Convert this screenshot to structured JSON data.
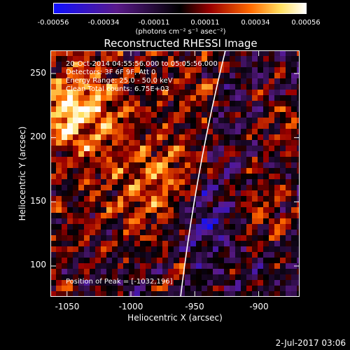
{
  "colorbar": {
    "tick_labels": [
      "-0.00056",
      "-0.00034",
      "-0.00011",
      "0.00011",
      "0.00034",
      "0.00056"
    ],
    "unit_label": "(photons cm⁻² s⁻¹ asec⁻²)",
    "colormap": [
      "#1010ff",
      "#5a1a8a",
      "#000000",
      "#9a0000",
      "#ff6a00",
      "#ffe060",
      "#ffffff"
    ]
  },
  "image": {
    "title": "Reconstructed RHESSI Image",
    "info_lines": [
      "20-Oct-2014 04:55:56.000 to 05:05:56.000",
      "Detectors: 3F 6F 9F, Att 0",
      "Energy Range: 25.0 - 50.0 keV",
      "Clean    Total counts: 6.75E+03"
    ],
    "peak_label": "Position of Peak = [-1032,196]",
    "x_axis": {
      "label": "Heliocentric X (arcsec)",
      "range": [
        -1063,
        -868
      ],
      "ticks": [
        "-1050",
        "-1000",
        "-950",
        "-900"
      ],
      "tick_values": [
        -1050,
        -1000,
        -950,
        -900
      ]
    },
    "y_axis": {
      "label": "Heliocentric Y (arcsec)",
      "range": [
        76,
        268
      ],
      "ticks": [
        "100",
        "150",
        "200",
        "250"
      ],
      "tick_values": [
        100,
        150,
        200,
        250
      ]
    }
  },
  "footer": {
    "timestamp": "2-Jul-2017 03:06"
  }
}
